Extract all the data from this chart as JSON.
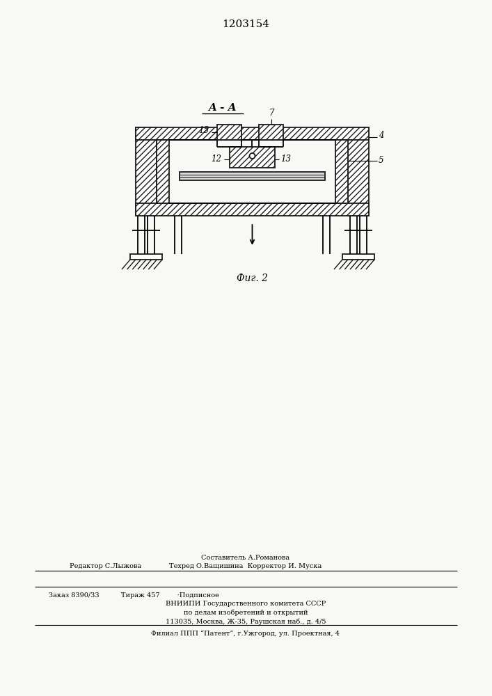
{
  "title_number": "1203154",
  "section_label": "A - A",
  "fig_label": "Фиг. 2",
  "bg_color": "#f8f8f5",
  "line_color": "#1a1a1a",
  "footer": {
    "col1_row1": "",
    "col1_row2": "Редактор С.Лыжова",
    "center_row1": "Составитель А.Романова",
    "center_row2": "Техред О.Ващишина  Корректор И. Муска",
    "block2_line1": "Заказ 8390/33          Тираж 457        ·Подписное",
    "block2_line2": "ВНИИПИ Государственного комитета СССР",
    "block2_line3": "по делам изобретений и открытий",
    "block2_line4": "113035, Москва, Ж-35, Раушская наб., д. 4/5",
    "block3_line1": "Филиал ППП “Патент”, г.Ужгород, ул. Проектная, 4"
  }
}
